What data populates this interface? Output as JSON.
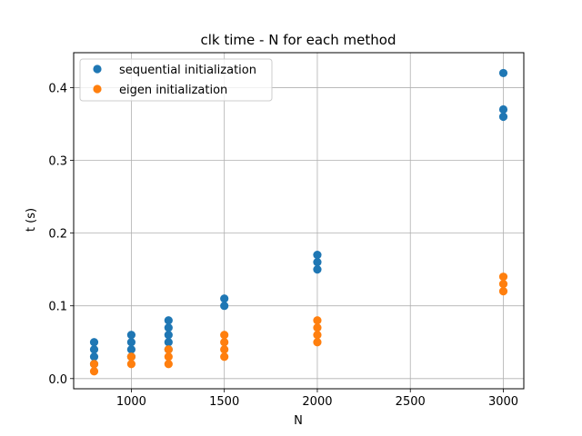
{
  "chart_data": {
    "type": "scatter",
    "title": "clk time - N for each method",
    "xlabel": "N",
    "ylabel": "t (s)",
    "xlim": [
      690,
      3110
    ],
    "ylim": [
      -0.014,
      0.448
    ],
    "xticks": [
      1000,
      1500,
      2000,
      2500,
      3000
    ],
    "yticks": [
      0.0,
      0.1,
      0.2,
      0.3,
      0.4
    ],
    "ytick_labels": [
      "0.0",
      "0.1",
      "0.2",
      "0.3",
      "0.4"
    ],
    "grid": true,
    "legend_position": "top-left",
    "series": [
      {
        "name": "sequential initialization",
        "color": "#1f77b4",
        "points": [
          [
            800,
            0.02
          ],
          [
            800,
            0.03
          ],
          [
            800,
            0.04
          ],
          [
            800,
            0.05
          ],
          [
            1000,
            0.03
          ],
          [
            1000,
            0.04
          ],
          [
            1000,
            0.05
          ],
          [
            1000,
            0.06
          ],
          [
            1200,
            0.04
          ],
          [
            1200,
            0.05
          ],
          [
            1200,
            0.06
          ],
          [
            1200,
            0.07
          ],
          [
            1200,
            0.08
          ],
          [
            1500,
            0.1
          ],
          [
            1500,
            0.11
          ],
          [
            2000,
            0.15
          ],
          [
            2000,
            0.16
          ],
          [
            2000,
            0.17
          ],
          [
            3000,
            0.36
          ],
          [
            3000,
            0.37
          ],
          [
            3000,
            0.42
          ]
        ]
      },
      {
        "name": "eigen initialization",
        "color": "#ff7f0e",
        "points": [
          [
            800,
            0.01
          ],
          [
            800,
            0.02
          ],
          [
            1000,
            0.02
          ],
          [
            1000,
            0.03
          ],
          [
            1200,
            0.02
          ],
          [
            1200,
            0.03
          ],
          [
            1200,
            0.04
          ],
          [
            1500,
            0.03
          ],
          [
            1500,
            0.04
          ],
          [
            1500,
            0.05
          ],
          [
            1500,
            0.06
          ],
          [
            2000,
            0.05
          ],
          [
            2000,
            0.06
          ],
          [
            2000,
            0.07
          ],
          [
            2000,
            0.08
          ],
          [
            3000,
            0.12
          ],
          [
            3000,
            0.13
          ],
          [
            3000,
            0.14
          ]
        ]
      }
    ]
  }
}
